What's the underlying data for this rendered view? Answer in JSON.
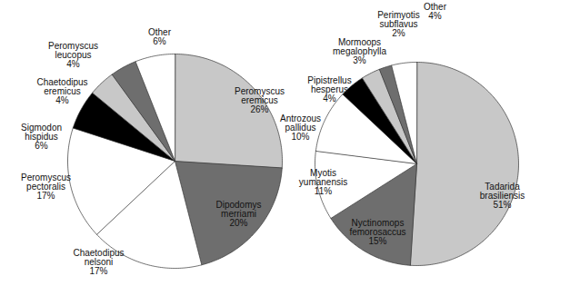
{
  "chart_data": [
    {
      "type": "pie",
      "categories": [
        "Peromyscus eremicus",
        "Dipodomys merriami",
        "Chaetodipus nelsoni",
        "Peromyscus pectoralis",
        "Sigmodon hispidus",
        "Chaetodipus eremicus",
        "Peromyscus leucopus",
        "Other"
      ],
      "values": [
        26,
        20,
        17,
        17,
        6,
        4,
        4,
        6
      ],
      "value_labels": [
        "26%",
        "20%",
        "17%",
        "17%",
        "6%",
        "4%",
        "4%",
        "6%"
      ],
      "colors": [
        "#c8c8c8",
        "#6e6e6e",
        "#ffffff",
        "#ffffff",
        "#000000",
        "#c8c8c8",
        "#6e6e6e",
        "#ffffff"
      ],
      "data_labels": true
    },
    {
      "type": "pie",
      "categories": [
        "Tadarida brasiliensis",
        "Nyctinomops femorosaccus",
        "Myotis yumanensis",
        "Antrozous pallidus",
        "Pipistrellus hesperus",
        "Mormoops megalophylla",
        "Perimyotis subflavus",
        "Other"
      ],
      "values": [
        51,
        15,
        11,
        10,
        4,
        3,
        2,
        4
      ],
      "value_labels": [
        "51%",
        "15%",
        "11%",
        "10%",
        "4%",
        "3%",
        "2%",
        "4%"
      ],
      "colors": [
        "#c8c8c8",
        "#6e6e6e",
        "#ffffff",
        "#ffffff",
        "#000000",
        "#c8c8c8",
        "#6e6e6e",
        "#ffffff"
      ],
      "data_labels": true
    }
  ]
}
